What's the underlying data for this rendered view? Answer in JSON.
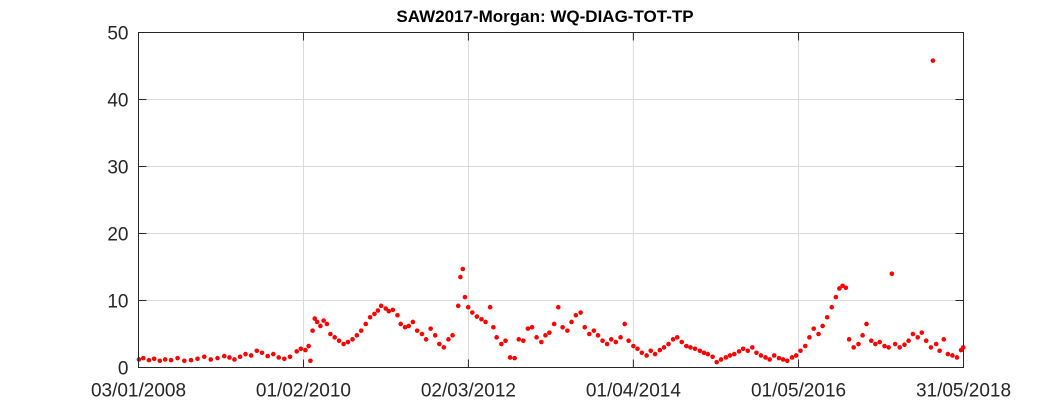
{
  "chart_data": {
    "type": "scatter",
    "title": "SAW2017-Morgan: WQ-DIAG-TOT-TP",
    "xlabel": "",
    "ylabel": "",
    "x_type": "date",
    "xlim": [
      "2008-01-03",
      "2018-05-31"
    ],
    "ylim": [
      0,
      50
    ],
    "x_ticks": [
      "03/01/2008",
      "01/02/2010",
      "02/03/2012",
      "01/04/2014",
      "01/05/2016",
      "31/05/2018"
    ],
    "x_tick_dates": [
      "2008-01-03",
      "2010-02-01",
      "2012-03-02",
      "2014-04-01",
      "2016-05-01",
      "2018-05-31"
    ],
    "y_ticks": [
      0,
      10,
      20,
      30,
      40,
      50
    ],
    "grid": true,
    "legend": "none",
    "marker_color": "#ff0000",
    "series": [
      {
        "points": [
          [
            "2008-01-05",
            1.2
          ],
          [
            "2008-01-25",
            1.4
          ],
          [
            "2008-02-20",
            1.1
          ],
          [
            "2008-03-15",
            1.3
          ],
          [
            "2008-04-10",
            1.0
          ],
          [
            "2008-05-05",
            1.2
          ],
          [
            "2008-06-01",
            1.1
          ],
          [
            "2008-07-01",
            1.4
          ],
          [
            "2008-08-01",
            1.0
          ],
          [
            "2008-09-01",
            1.1
          ],
          [
            "2008-10-01",
            1.3
          ],
          [
            "2008-11-01",
            1.6
          ],
          [
            "2008-12-01",
            1.2
          ],
          [
            "2009-01-01",
            1.4
          ],
          [
            "2009-02-01",
            1.7
          ],
          [
            "2009-02-25",
            1.5
          ],
          [
            "2009-03-20",
            1.2
          ],
          [
            "2009-04-15",
            1.6
          ],
          [
            "2009-05-10",
            2.0
          ],
          [
            "2009-06-05",
            1.8
          ],
          [
            "2009-07-01",
            2.5
          ],
          [
            "2009-07-25",
            2.2
          ],
          [
            "2009-08-20",
            1.7
          ],
          [
            "2009-09-15",
            2.0
          ],
          [
            "2009-10-10",
            1.5
          ],
          [
            "2009-11-05",
            1.3
          ],
          [
            "2009-12-01",
            1.6
          ],
          [
            "2010-01-01",
            2.4
          ],
          [
            "2010-01-20",
            2.8
          ],
          [
            "2010-02-10",
            2.6
          ],
          [
            "2010-02-25",
            3.2
          ],
          [
            "2010-03-05",
            1.0
          ],
          [
            "2010-03-15",
            5.5
          ],
          [
            "2010-03-25",
            7.3
          ],
          [
            "2010-04-05",
            6.8
          ],
          [
            "2010-04-20",
            6.2
          ],
          [
            "2010-05-05",
            7.0
          ],
          [
            "2010-05-20",
            6.5
          ],
          [
            "2010-06-05",
            5.0
          ],
          [
            "2010-06-25",
            4.5
          ],
          [
            "2010-07-15",
            4.0
          ],
          [
            "2010-08-05",
            3.5
          ],
          [
            "2010-08-25",
            3.8
          ],
          [
            "2010-09-15",
            4.2
          ],
          [
            "2010-10-05",
            4.8
          ],
          [
            "2010-10-25",
            5.5
          ],
          [
            "2010-11-15",
            6.5
          ],
          [
            "2010-12-05",
            7.5
          ],
          [
            "2010-12-25",
            8.0
          ],
          [
            "2011-01-10",
            8.5
          ],
          [
            "2011-01-25",
            9.2
          ],
          [
            "2011-02-15",
            8.8
          ],
          [
            "2011-03-01",
            8.4
          ],
          [
            "2011-03-20",
            8.6
          ],
          [
            "2011-04-10",
            7.8
          ],
          [
            "2011-04-25",
            6.5
          ],
          [
            "2011-05-15",
            6.0
          ],
          [
            "2011-06-01",
            6.2
          ],
          [
            "2011-06-20",
            6.8
          ],
          [
            "2011-07-10",
            5.5
          ],
          [
            "2011-08-01",
            5.0
          ],
          [
            "2011-08-20",
            4.2
          ],
          [
            "2011-09-10",
            5.8
          ],
          [
            "2011-10-01",
            4.8
          ],
          [
            "2011-10-20",
            3.5
          ],
          [
            "2011-11-10",
            3.0
          ],
          [
            "2011-12-01",
            4.2
          ],
          [
            "2011-12-20",
            4.8
          ],
          [
            "2012-01-15",
            9.2
          ],
          [
            "2012-01-25",
            13.5
          ],
          [
            "2012-02-05",
            14.7
          ],
          [
            "2012-02-15",
            10.5
          ],
          [
            "2012-03-01",
            9.0
          ],
          [
            "2012-03-20",
            8.2
          ],
          [
            "2012-04-10",
            7.6
          ],
          [
            "2012-05-01",
            7.2
          ],
          [
            "2012-05-20",
            6.8
          ],
          [
            "2012-06-10",
            9.0
          ],
          [
            "2012-06-25",
            6.0
          ],
          [
            "2012-07-10",
            4.5
          ],
          [
            "2012-08-01",
            3.5
          ],
          [
            "2012-08-20",
            4.0
          ],
          [
            "2012-09-10",
            1.5
          ],
          [
            "2012-10-01",
            1.4
          ],
          [
            "2012-10-20",
            4.2
          ],
          [
            "2012-11-10",
            4.0
          ],
          [
            "2012-12-01",
            5.8
          ],
          [
            "2012-12-20",
            6.0
          ],
          [
            "2013-01-10",
            4.5
          ],
          [
            "2013-02-01",
            3.8
          ],
          [
            "2013-02-20",
            4.8
          ],
          [
            "2013-03-10",
            5.2
          ],
          [
            "2013-04-01",
            6.5
          ],
          [
            "2013-04-20",
            9.0
          ],
          [
            "2013-05-10",
            6.0
          ],
          [
            "2013-06-01",
            5.5
          ],
          [
            "2013-06-20",
            6.8
          ],
          [
            "2013-07-10",
            7.8
          ],
          [
            "2013-08-01",
            8.2
          ],
          [
            "2013-08-20",
            6.0
          ],
          [
            "2013-09-10",
            5.0
          ],
          [
            "2013-10-01",
            5.5
          ],
          [
            "2013-10-20",
            4.8
          ],
          [
            "2013-11-10",
            4.0
          ],
          [
            "2013-12-01",
            3.5
          ],
          [
            "2013-12-20",
            4.2
          ],
          [
            "2014-01-10",
            3.8
          ],
          [
            "2014-02-01",
            4.5
          ],
          [
            "2014-02-20",
            6.5
          ],
          [
            "2014-03-10",
            4.0
          ],
          [
            "2014-04-01",
            3.2
          ],
          [
            "2014-04-20",
            2.8
          ],
          [
            "2014-05-10",
            2.2
          ],
          [
            "2014-06-01",
            1.8
          ],
          [
            "2014-06-20",
            2.5
          ],
          [
            "2014-07-10",
            2.0
          ],
          [
            "2014-08-01",
            2.6
          ],
          [
            "2014-08-20",
            3.0
          ],
          [
            "2014-09-10",
            3.5
          ],
          [
            "2014-10-01",
            4.2
          ],
          [
            "2014-10-20",
            4.5
          ],
          [
            "2014-11-10",
            3.8
          ],
          [
            "2014-12-01",
            3.2
          ],
          [
            "2014-12-20",
            3.0
          ],
          [
            "2015-01-10",
            2.8
          ],
          [
            "2015-02-01",
            2.5
          ],
          [
            "2015-02-20",
            2.2
          ],
          [
            "2015-03-10",
            2.0
          ],
          [
            "2015-04-01",
            1.6
          ],
          [
            "2015-04-20",
            0.8
          ],
          [
            "2015-05-10",
            1.2
          ],
          [
            "2015-06-01",
            1.5
          ],
          [
            "2015-06-20",
            1.8
          ],
          [
            "2015-07-10",
            2.0
          ],
          [
            "2015-08-01",
            2.4
          ],
          [
            "2015-08-20",
            2.8
          ],
          [
            "2015-09-10",
            2.5
          ],
          [
            "2015-10-01",
            3.0
          ],
          [
            "2015-10-20",
            2.2
          ],
          [
            "2015-11-10",
            1.8
          ],
          [
            "2015-12-01",
            1.5
          ],
          [
            "2015-12-20",
            1.2
          ],
          [
            "2016-01-10",
            1.8
          ],
          [
            "2016-02-01",
            1.4
          ],
          [
            "2016-02-20",
            1.2
          ],
          [
            "2016-03-10",
            1.0
          ],
          [
            "2016-04-01",
            1.5
          ],
          [
            "2016-04-20",
            1.8
          ],
          [
            "2016-05-10",
            2.5
          ],
          [
            "2016-06-01",
            3.2
          ],
          [
            "2016-06-20",
            4.5
          ],
          [
            "2016-07-10",
            5.8
          ],
          [
            "2016-08-01",
            5.0
          ],
          [
            "2016-08-20",
            6.2
          ],
          [
            "2016-09-10",
            7.5
          ],
          [
            "2016-10-01",
            9.0
          ],
          [
            "2016-10-20",
            10.5
          ],
          [
            "2016-11-05",
            11.8
          ],
          [
            "2016-11-20",
            12.2
          ],
          [
            "2016-12-05",
            11.9
          ],
          [
            "2016-12-20",
            4.2
          ],
          [
            "2017-01-10",
            3.0
          ],
          [
            "2017-02-01",
            3.5
          ],
          [
            "2017-02-20",
            4.8
          ],
          [
            "2017-03-10",
            6.5
          ],
          [
            "2017-04-01",
            4.0
          ],
          [
            "2017-04-20",
            3.5
          ],
          [
            "2017-05-10",
            3.8
          ],
          [
            "2017-06-01",
            3.2
          ],
          [
            "2017-06-20",
            3.0
          ],
          [
            "2017-07-05",
            14.0
          ],
          [
            "2017-07-20",
            3.5
          ],
          [
            "2017-08-10",
            3.0
          ],
          [
            "2017-09-01",
            3.4
          ],
          [
            "2017-09-20",
            4.0
          ],
          [
            "2017-10-10",
            5.0
          ],
          [
            "2017-11-01",
            4.5
          ],
          [
            "2017-11-20",
            5.2
          ],
          [
            "2017-12-10",
            4.0
          ],
          [
            "2018-01-01",
            3.0
          ],
          [
            "2018-01-10",
            45.8
          ],
          [
            "2018-01-25",
            3.5
          ],
          [
            "2018-02-10",
            2.5
          ],
          [
            "2018-03-01",
            4.2
          ],
          [
            "2018-03-20",
            2.0
          ],
          [
            "2018-04-10",
            1.8
          ],
          [
            "2018-05-01",
            1.5
          ],
          [
            "2018-05-20",
            2.6
          ],
          [
            "2018-05-30",
            3.0
          ]
        ]
      }
    ]
  }
}
